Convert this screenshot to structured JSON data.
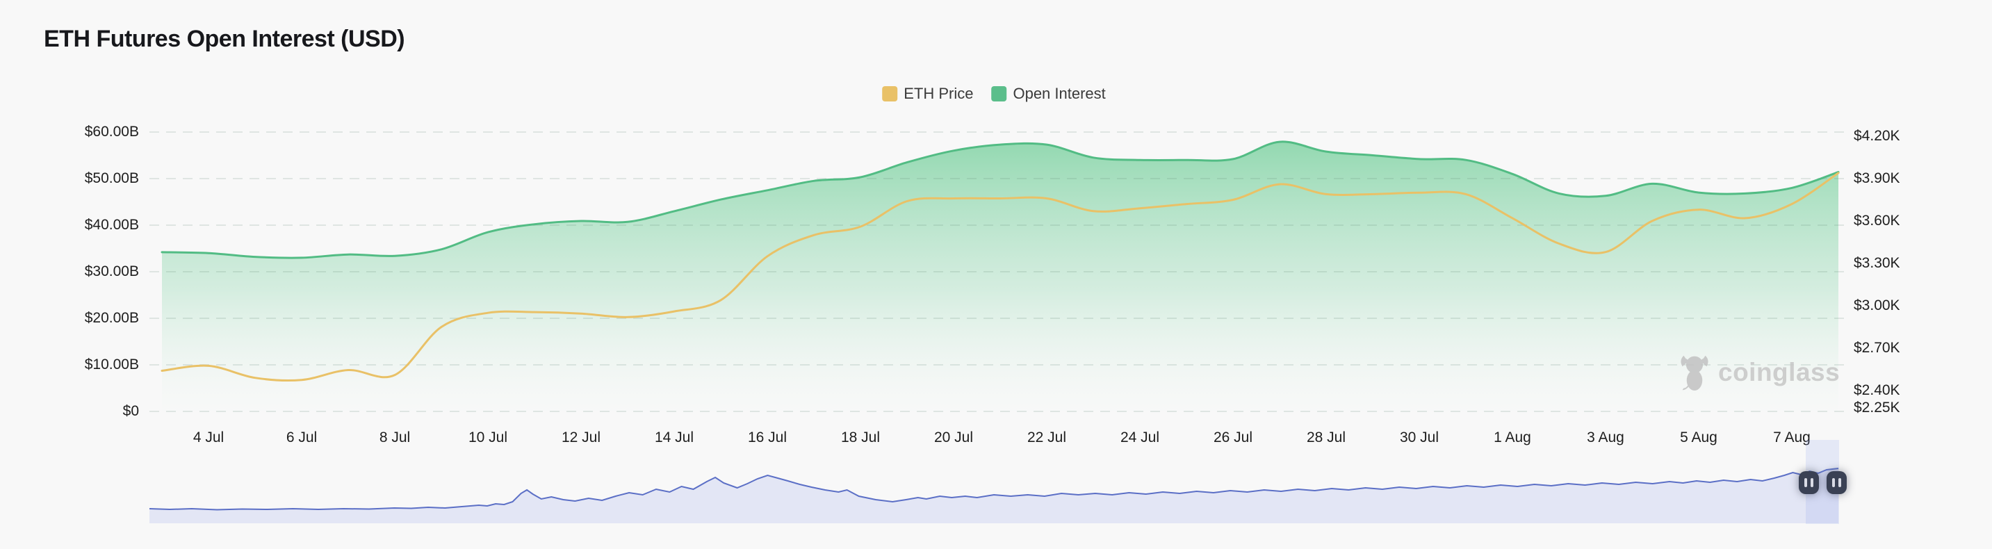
{
  "page": {
    "title": "ETH Futures Open Interest (USD)",
    "watermark": "coinglass"
  },
  "legend": [
    {
      "label": "ETH Price",
      "color": "#e9c167"
    },
    {
      "label": "Open Interest",
      "color": "#5bbe8b"
    }
  ],
  "chart_data": {
    "type": "area",
    "title": "ETH Futures Open Interest (USD)",
    "grid": true,
    "legend_position": "top-center",
    "x_dates": [
      "3 Jul",
      "4 Jul",
      "5 Jul",
      "6 Jul",
      "7 Jul",
      "8 Jul",
      "9 Jul",
      "10 Jul",
      "11 Jul",
      "12 Jul",
      "13 Jul",
      "14 Jul",
      "15 Jul",
      "16 Jul",
      "17 Jul",
      "18 Jul",
      "19 Jul",
      "20 Jul",
      "21 Jul",
      "22 Jul",
      "23 Jul",
      "24 Jul",
      "25 Jul",
      "26 Jul",
      "27 Jul",
      "28 Jul",
      "29 Jul",
      "30 Jul",
      "31 Jul",
      "1 Aug",
      "2 Aug",
      "3 Aug",
      "4 Aug",
      "5 Aug",
      "6 Aug",
      "7 Aug",
      "8 Aug"
    ],
    "x_tick_labels": [
      "4 Jul",
      "6 Jul",
      "8 Jul",
      "10 Jul",
      "12 Jul",
      "14 Jul",
      "16 Jul",
      "18 Jul",
      "20 Jul",
      "22 Jul",
      "24 Jul",
      "26 Jul",
      "28 Jul",
      "30 Jul",
      "1 Aug",
      "3 Aug",
      "5 Aug",
      "7 Aug"
    ],
    "series": [
      {
        "name": "Open Interest",
        "axis": "left",
        "unit": "USD billions",
        "color": "#52bc84",
        "fill_top_color": "#9bdcb8",
        "values": [
          34.2,
          34.0,
          33.2,
          33.0,
          33.7,
          33.4,
          34.8,
          38.5,
          40.2,
          40.9,
          40.7,
          43.0,
          45.5,
          47.5,
          49.5,
          50.3,
          53.5,
          56.0,
          57.3,
          57.3,
          54.5,
          54.0,
          54.0,
          54.2,
          57.9,
          55.8,
          55.0,
          54.2,
          54.0,
          51.0,
          46.8,
          46.3,
          48.9,
          47.0,
          46.8,
          48.0,
          51.4
        ]
      },
      {
        "name": "ETH Price",
        "axis": "right",
        "unit": "USD thousands",
        "color": "#e9c167",
        "values": [
          2.54,
          2.575,
          2.49,
          2.475,
          2.545,
          2.51,
          2.85,
          2.95,
          2.955,
          2.945,
          2.92,
          2.96,
          3.04,
          3.35,
          3.5,
          3.56,
          3.74,
          3.76,
          3.76,
          3.76,
          3.67,
          3.69,
          3.72,
          3.75,
          3.86,
          3.79,
          3.79,
          3.8,
          3.79,
          3.62,
          3.44,
          3.38,
          3.6,
          3.68,
          3.62,
          3.72,
          3.94
        ]
      }
    ],
    "left_axis": {
      "range": [
        0,
        60
      ],
      "ticks": [
        {
          "value": 60,
          "label": "$60.00B"
        },
        {
          "value": 50,
          "label": "$50.00B"
        },
        {
          "value": 40,
          "label": "$40.00B"
        },
        {
          "value": 30,
          "label": "$30.00B"
        },
        {
          "value": 20,
          "label": "$20.00B"
        },
        {
          "value": 10,
          "label": "$10.00B"
        },
        {
          "value": 0,
          "label": "$0"
        }
      ]
    },
    "right_axis": {
      "range": [
        2.25,
        4.2
      ],
      "ticks": [
        {
          "value": 4.2,
          "label": "$4.20K"
        },
        {
          "value": 3.9,
          "label": "$3.90K"
        },
        {
          "value": 3.6,
          "label": "$3.60K"
        },
        {
          "value": 3.3,
          "label": "$3.30K"
        },
        {
          "value": 3.0,
          "label": "$3.00K"
        },
        {
          "value": 2.7,
          "label": "$2.70K"
        },
        {
          "value": 2.4,
          "label": "$2.40K"
        },
        {
          "value": 2.25,
          "label": "$2.25K"
        }
      ]
    }
  },
  "navigator": {
    "line_color": "#5b6fc6",
    "fill_color": "#e3e6f5",
    "handle_icon": "pause-bars",
    "points": [
      [
        0,
        84
      ],
      [
        0.012,
        85
      ],
      [
        0.025,
        84
      ],
      [
        0.04,
        85.5
      ],
      [
        0.055,
        84.5
      ],
      [
        0.07,
        85
      ],
      [
        0.085,
        84
      ],
      [
        0.1,
        85
      ],
      [
        0.115,
        84
      ],
      [
        0.13,
        84.5
      ],
      [
        0.145,
        83
      ],
      [
        0.155,
        83.5
      ],
      [
        0.165,
        82
      ],
      [
        0.175,
        83
      ],
      [
        0.185,
        81
      ],
      [
        0.195,
        79
      ],
      [
        0.2,
        80
      ],
      [
        0.205,
        77
      ],
      [
        0.21,
        78
      ],
      [
        0.215,
        74
      ],
      [
        0.22,
        62
      ],
      [
        0.2235,
        57
      ],
      [
        0.227,
        63
      ],
      [
        0.232,
        70
      ],
      [
        0.238,
        67
      ],
      [
        0.245,
        71
      ],
      [
        0.252,
        73
      ],
      [
        0.26,
        69
      ],
      [
        0.268,
        72
      ],
      [
        0.276,
        66
      ],
      [
        0.284,
        61
      ],
      [
        0.292,
        64
      ],
      [
        0.3,
        56
      ],
      [
        0.308,
        60
      ],
      [
        0.315,
        52
      ],
      [
        0.322,
        56
      ],
      [
        0.33,
        45
      ],
      [
        0.335,
        39
      ],
      [
        0.34,
        47
      ],
      [
        0.348,
        54
      ],
      [
        0.354,
        48
      ],
      [
        0.36,
        41
      ],
      [
        0.366,
        36
      ],
      [
        0.372,
        40
      ],
      [
        0.378,
        44
      ],
      [
        0.385,
        49
      ],
      [
        0.392,
        53
      ],
      [
        0.4,
        57
      ],
      [
        0.408,
        60
      ],
      [
        0.413,
        57
      ],
      [
        0.42,
        66
      ],
      [
        0.43,
        71
      ],
      [
        0.44,
        74
      ],
      [
        0.448,
        71
      ],
      [
        0.455,
        68
      ],
      [
        0.46,
        70
      ],
      [
        0.468,
        66
      ],
      [
        0.475,
        68
      ],
      [
        0.483,
        66
      ],
      [
        0.49,
        68
      ],
      [
        0.5,
        64
      ],
      [
        0.51,
        66
      ],
      [
        0.52,
        64
      ],
      [
        0.53,
        66
      ],
      [
        0.54,
        62
      ],
      [
        0.55,
        64
      ],
      [
        0.56,
        62
      ],
      [
        0.57,
        64
      ],
      [
        0.58,
        61
      ],
      [
        0.59,
        63
      ],
      [
        0.6,
        60
      ],
      [
        0.61,
        62
      ],
      [
        0.62,
        59
      ],
      [
        0.63,
        61
      ],
      [
        0.64,
        58
      ],
      [
        0.65,
        60
      ],
      [
        0.66,
        57
      ],
      [
        0.67,
        59
      ],
      [
        0.68,
        56
      ],
      [
        0.69,
        58
      ],
      [
        0.7,
        55
      ],
      [
        0.71,
        57
      ],
      [
        0.72,
        54
      ],
      [
        0.73,
        56
      ],
      [
        0.74,
        53
      ],
      [
        0.75,
        55
      ],
      [
        0.76,
        52
      ],
      [
        0.77,
        54
      ],
      [
        0.78,
        51
      ],
      [
        0.79,
        53
      ],
      [
        0.8,
        50
      ],
      [
        0.81,
        52
      ],
      [
        0.82,
        49
      ],
      [
        0.83,
        51
      ],
      [
        0.84,
        48
      ],
      [
        0.85,
        50
      ],
      [
        0.86,
        47
      ],
      [
        0.87,
        49
      ],
      [
        0.88,
        46
      ],
      [
        0.89,
        48
      ],
      [
        0.9,
        45
      ],
      [
        0.908,
        47
      ],
      [
        0.916,
        44
      ],
      [
        0.924,
        46
      ],
      [
        0.932,
        43
      ],
      [
        0.94,
        45
      ],
      [
        0.948,
        42
      ],
      [
        0.955,
        44
      ],
      [
        0.962,
        40
      ],
      [
        0.968,
        36
      ],
      [
        0.973,
        32
      ],
      [
        0.978,
        35
      ],
      [
        0.983,
        30
      ],
      [
        0.988,
        33
      ],
      [
        0.993,
        28
      ],
      [
        1,
        26
      ]
    ]
  }
}
